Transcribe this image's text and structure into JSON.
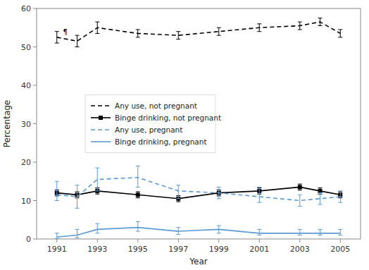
{
  "chart_data": {
    "type": "line",
    "x": [
      1991,
      1992,
      1993,
      1995,
      1997,
      1999,
      2001,
      2003,
      2004,
      2005
    ],
    "series": [
      {
        "name": "Any use, not pregnant",
        "color": "#000000",
        "line_style": "dashed",
        "marker": "none",
        "values": [
          52.5,
          51.5,
          55.0,
          53.5,
          53.0,
          54.0,
          55.0,
          55.5,
          56.5,
          53.5
        ],
        "lo": [
          51.0,
          50.0,
          53.5,
          52.5,
          52.0,
          53.0,
          54.0,
          54.5,
          55.5,
          52.5
        ],
        "hi": [
          54.0,
          53.0,
          56.5,
          54.5,
          54.0,
          55.0,
          56.0,
          56.5,
          57.5,
          54.5
        ]
      },
      {
        "name": "Binge drinking, not pregnant",
        "color": "#000000",
        "line_style": "solid",
        "marker": "square",
        "values": [
          12.0,
          11.5,
          12.5,
          11.5,
          10.5,
          12.0,
          12.5,
          13.5,
          12.5,
          11.5
        ],
        "lo": [
          11.2,
          10.7,
          11.7,
          10.7,
          9.7,
          11.2,
          11.7,
          12.7,
          11.7,
          10.7
        ],
        "hi": [
          12.8,
          12.3,
          13.3,
          12.3,
          11.3,
          12.8,
          13.3,
          14.3,
          13.3,
          12.3
        ]
      },
      {
        "name": "Any use, pregnant",
        "color": "#5B9BD5",
        "line_style": "dashed",
        "marker": "none",
        "values": [
          11.5,
          11.0,
          15.5,
          16.0,
          12.5,
          12.0,
          11.0,
          10.0,
          10.5,
          11.0
        ],
        "lo": [
          10.0,
          8.0,
          12.5,
          13.5,
          10.5,
          10.5,
          9.5,
          8.5,
          9.0,
          9.5
        ],
        "hi": [
          15.0,
          14.0,
          18.5,
          19.0,
          14.0,
          13.5,
          13.5,
          11.5,
          12.0,
          12.5
        ]
      },
      {
        "name": "Binge drinking, pregnant",
        "color": "#5B9BD5",
        "line_style": "solid",
        "marker": "none",
        "values": [
          0.5,
          1.0,
          2.5,
          3.0,
          2.0,
          2.5,
          1.5,
          1.5,
          1.5,
          1.5
        ],
        "lo": [
          0.1,
          0.3,
          1.5,
          2.0,
          1.2,
          1.5,
          1.0,
          1.0,
          1.0,
          1.0
        ],
        "hi": [
          1.5,
          2.5,
          4.0,
          4.5,
          3.0,
          3.5,
          2.5,
          2.5,
          2.5,
          2.5
        ]
      }
    ],
    "annotations": [
      {
        "text": "¶",
        "x": 1991.3,
        "y": 53.2
      }
    ],
    "xlabel": "Year",
    "ylabel": "Percentage",
    "xlim": [
      1990.0,
      2006.0
    ],
    "xticks": [
      1991,
      1993,
      1995,
      1997,
      1999,
      2001,
      2003,
      2005
    ],
    "ylim": [
      0,
      60
    ],
    "yticks": [
      0,
      10,
      20,
      30,
      40,
      50,
      60
    ],
    "grid": false,
    "legend": "center left"
  }
}
